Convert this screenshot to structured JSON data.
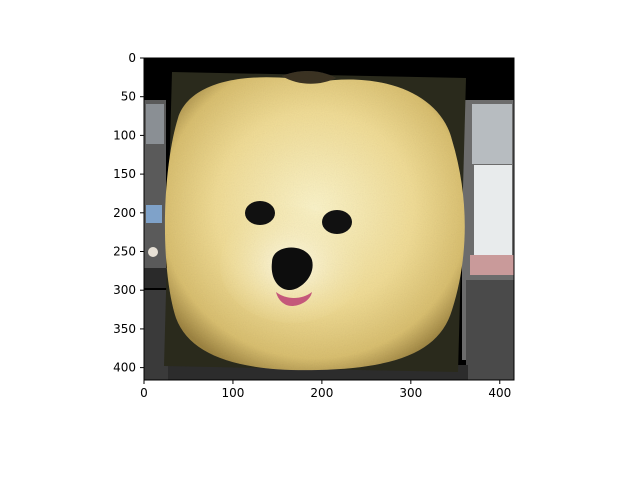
{
  "chart_data": {
    "type": "image",
    "title": "",
    "xlabel": "",
    "ylabel": "",
    "xlim": [
      0,
      416
    ],
    "ylim": [
      416,
      0
    ],
    "x_ticks": [
      0,
      100,
      200,
      300,
      400
    ],
    "y_ticks": [
      0,
      50,
      100,
      150,
      200,
      250,
      300,
      350,
      400
    ],
    "grid": false,
    "image_subject": "pomeranian-dog-face",
    "colors": {
      "padding": "#000000",
      "fur_light": "#f4e7a8",
      "fur_mid": "#e4cd7c",
      "fur_shadow": "#b89a4e",
      "eye": "#111111",
      "nose": "#0d0d0d",
      "tongue": "#c4587a",
      "axis": "#000000"
    }
  }
}
